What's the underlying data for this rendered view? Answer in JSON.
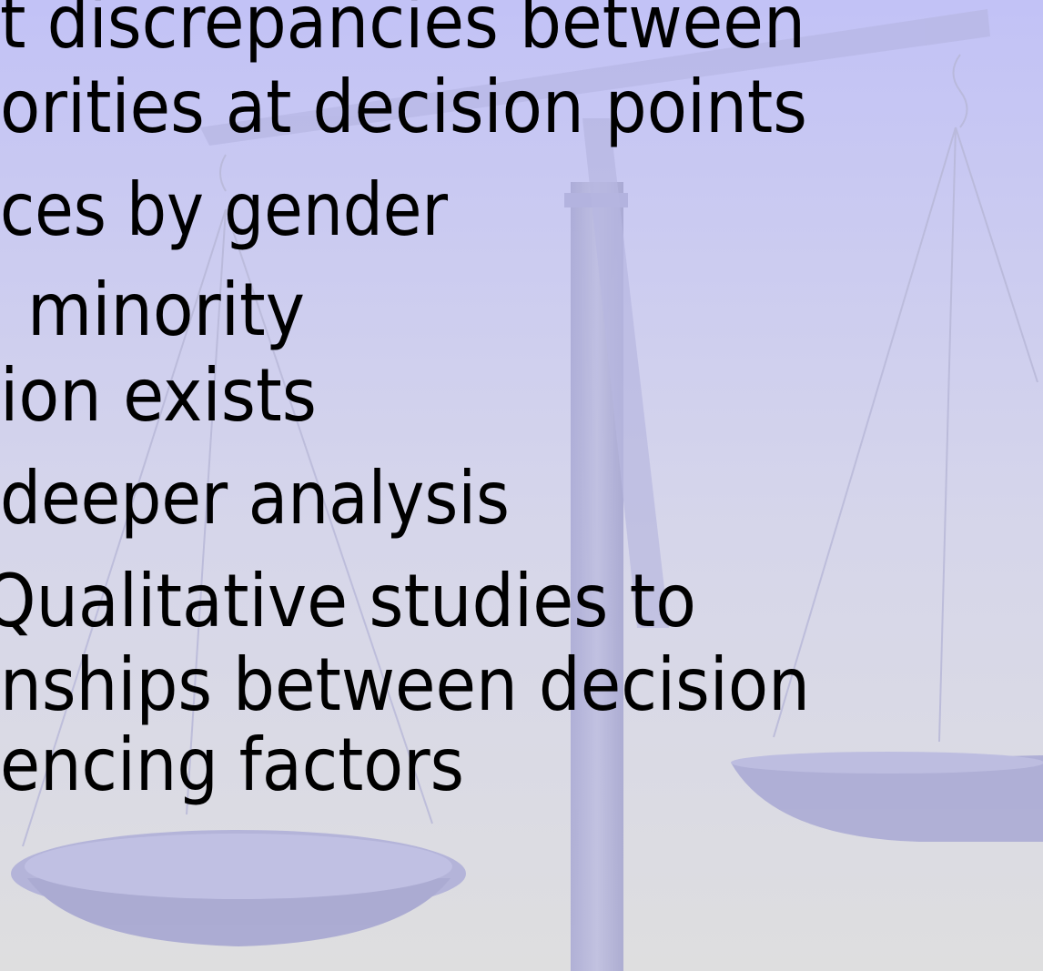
{
  "slide": {
    "lines": [
      "t discrepancies between",
      "orities at decision points",
      "ces by gender",
      "minority",
      "ion exists",
      "deeper analysis",
      "Qualitative studies to",
      "nships between decision",
      "encing factors"
    ]
  }
}
